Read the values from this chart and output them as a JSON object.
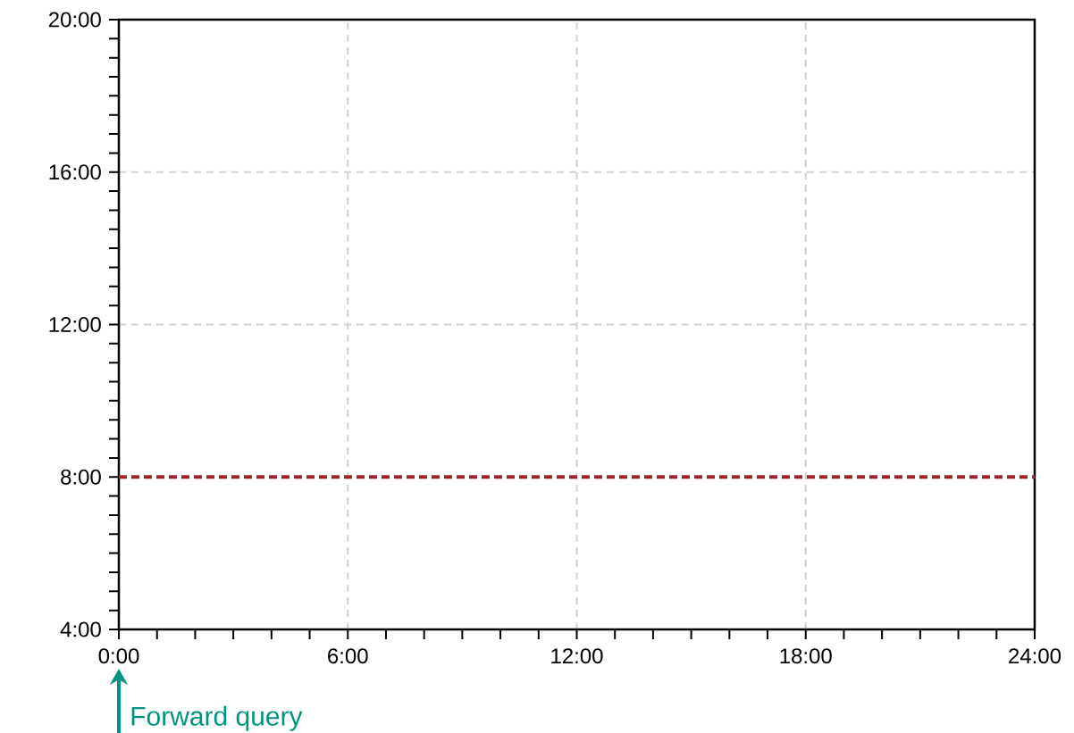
{
  "chart_data": {
    "type": "line",
    "x": [
      0,
      24
    ],
    "series": [
      {
        "color": "#a3232d",
        "values": [
          8,
          8
        ],
        "line_style": "dashed"
      }
    ],
    "xlim": [
      0,
      24
    ],
    "ylim": [
      4,
      20
    ],
    "xticks": [
      {
        "value": 0,
        "label": "0:00"
      },
      {
        "value": 6,
        "label": "6:00"
      },
      {
        "value": 12,
        "label": "12:00"
      },
      {
        "value": 18,
        "label": "18:00"
      },
      {
        "value": 24,
        "label": "24:00"
      }
    ],
    "yticks": [
      {
        "value": 4,
        "label": "4:00"
      },
      {
        "value": 8,
        "label": "8:00"
      },
      {
        "value": 12,
        "label": "12:00"
      },
      {
        "value": 16,
        "label": "16:00"
      },
      {
        "value": 20,
        "label": "20:00"
      }
    ],
    "grid": true,
    "annotations": [
      "Forward query"
    ]
  }
}
